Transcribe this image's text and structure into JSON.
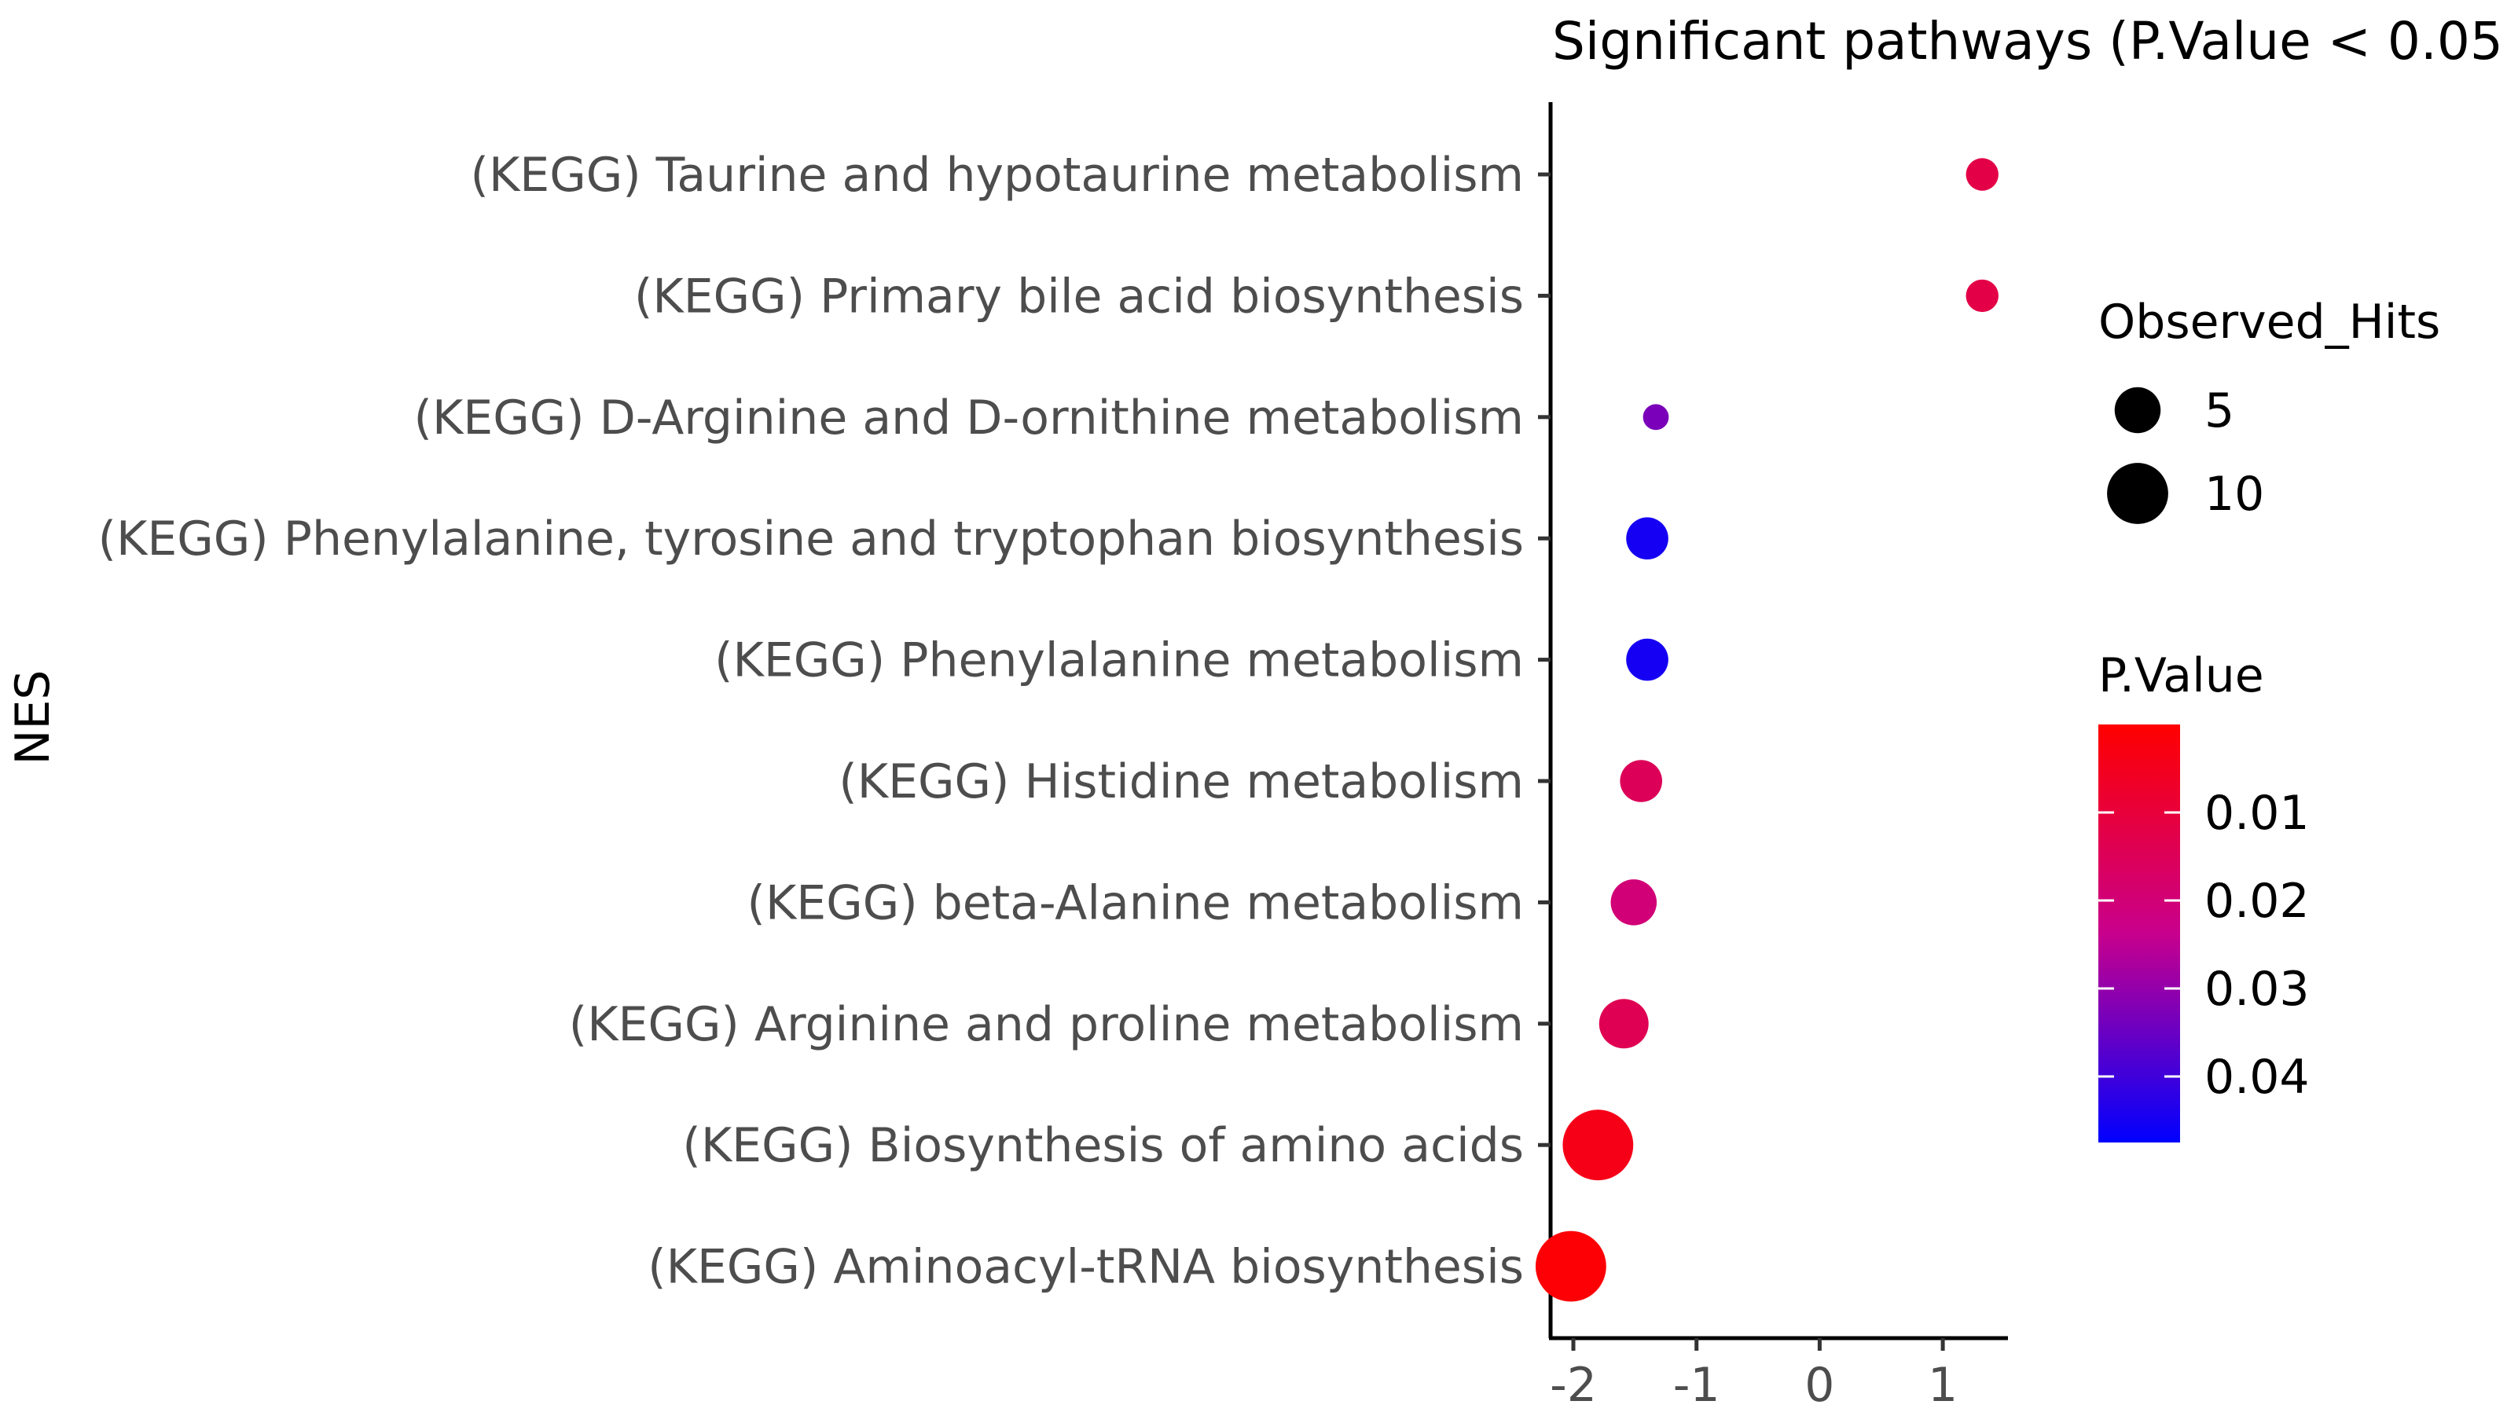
{
  "chart_data": {
    "type": "scatter",
    "title": "Significant pathways (P.Value < 0.05",
    "ylabel": "NES",
    "xlabel": "",
    "xlim": [
      -2.15,
      1.5
    ],
    "x_ticks": [
      -2,
      -1,
      0,
      1
    ],
    "x_tick_labels": [
      "-2",
      "-1",
      "0",
      "1"
    ],
    "categories": [
      "(KEGG) Taurine and hypotaurine metabolism",
      "(KEGG) Primary bile acid biosynthesis",
      "(KEGG) D-Arginine and D-ornithine metabolism",
      "(KEGG) Phenylalanine, tyrosine and tryptophan biosynthesis",
      "(KEGG) Phenylalanine metabolism",
      "(KEGG) Histidine metabolism",
      "(KEGG) beta-Alanine metabolism",
      "(KEGG) Arginine and proline metabolism",
      "(KEGG) Biosynthesis of amino acids",
      "(KEGG) Aminoacyl-tRNA biosynthesis"
    ],
    "points": [
      {
        "category": "(KEGG) Taurine and hypotaurine metabolism",
        "nes": 1.32,
        "observed_hits": 2,
        "p_value": 0.012
      },
      {
        "category": "(KEGG) Primary bile acid biosynthesis",
        "nes": 1.32,
        "observed_hits": 2,
        "p_value": 0.012
      },
      {
        "category": "(KEGG) D-Arginine and D-ornithine metabolism",
        "nes": -1.33,
        "observed_hits": 1,
        "p_value": 0.033
      },
      {
        "category": "(KEGG) Phenylalanine, tyrosine and tryptophan biosynthesis",
        "nes": -1.4,
        "observed_hits": 4,
        "p_value": 0.045
      },
      {
        "category": "(KEGG) Phenylalanine metabolism",
        "nes": -1.4,
        "observed_hits": 4,
        "p_value": 0.045
      },
      {
        "category": "(KEGG) Histidine metabolism",
        "nes": -1.45,
        "observed_hits": 4,
        "p_value": 0.015
      },
      {
        "category": "(KEGG) beta-Alanine metabolism",
        "nes": -1.51,
        "observed_hits": 5,
        "p_value": 0.02
      },
      {
        "category": "(KEGG) Arginine and proline metabolism",
        "nes": -1.59,
        "observed_hits": 6,
        "p_value": 0.014
      },
      {
        "category": "(KEGG) Biosynthesis of amino acids",
        "nes": -1.8,
        "observed_hits": 14,
        "p_value": 0.004
      },
      {
        "category": "(KEGG) Aminoacyl-tRNA biosynthesis",
        "nes": -2.02,
        "observed_hits": 14,
        "p_value": 0.001
      }
    ],
    "legend_size": {
      "title": "Observed_Hits",
      "values": [
        5,
        10
      ],
      "labels": [
        "5",
        "10"
      ]
    },
    "legend_color": {
      "title": "P.Value",
      "low_color": "#FF0000",
      "high_color": "#0000FF",
      "range": [
        0.0,
        0.0475
      ],
      "ticks": [
        0.01,
        0.02,
        0.03,
        0.04
      ],
      "tick_labels": [
        "0.01",
        "0.02",
        "0.03",
        "0.04"
      ]
    }
  }
}
